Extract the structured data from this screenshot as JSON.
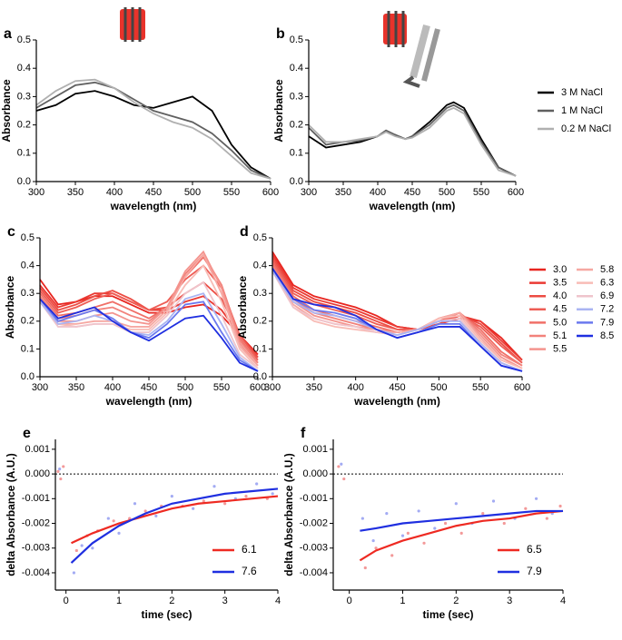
{
  "chart_data": [
    {
      "type": "line",
      "label": "a",
      "xlabel": "wavelength (nm)",
      "ylabel": "Absorbance",
      "x": [
        300,
        325,
        350,
        375,
        400,
        425,
        450,
        475,
        500,
        525,
        550,
        575,
        600
      ],
      "series": [
        {
          "color": "#000000",
          "values": [
            0.25,
            0.27,
            0.31,
            0.32,
            0.3,
            0.27,
            0.26,
            0.28,
            0.3,
            0.25,
            0.13,
            0.05,
            0.01
          ]
        },
        {
          "color": "#606060",
          "values": [
            0.26,
            0.3,
            0.34,
            0.35,
            0.33,
            0.29,
            0.25,
            0.23,
            0.21,
            0.17,
            0.11,
            0.04,
            0.01
          ]
        },
        {
          "color": "#b0b0b0",
          "values": [
            0.27,
            0.32,
            0.355,
            0.36,
            0.33,
            0.28,
            0.24,
            0.21,
            0.19,
            0.15,
            0.09,
            0.03,
            0.01
          ]
        }
      ],
      "xlim": [
        300,
        600
      ],
      "xticks": [
        300,
        350,
        400,
        450,
        500,
        550,
        600
      ],
      "ylim": [
        0,
        0.5
      ],
      "yticks": [
        {
          "value": 0,
          "label": "0.0"
        },
        0.1,
        0.2,
        0.3,
        0.4,
        0.5
      ]
    },
    {
      "type": "line",
      "label": "b",
      "xlabel": "wavelength (nm)",
      "ylabel": "Absorbance",
      "x": [
        300,
        325,
        350,
        375,
        400,
        412,
        425,
        440,
        450,
        475,
        500,
        510,
        525,
        550,
        575,
        600
      ],
      "series": [
        {
          "name": "3 M NaCl",
          "color": "#000000",
          "values": [
            0.16,
            0.12,
            0.13,
            0.14,
            0.16,
            0.18,
            0.165,
            0.15,
            0.16,
            0.21,
            0.27,
            0.28,
            0.26,
            0.15,
            0.05,
            0.02
          ]
        },
        {
          "name": "1 M NaCl",
          "color": "#606060",
          "values": [
            0.19,
            0.13,
            0.14,
            0.145,
            0.16,
            0.18,
            0.165,
            0.15,
            0.16,
            0.2,
            0.26,
            0.27,
            0.25,
            0.14,
            0.05,
            0.02
          ]
        },
        {
          "name": "0.2 M NaCl",
          "color": "#b0b0b0",
          "values": [
            0.2,
            0.14,
            0.14,
            0.15,
            0.16,
            0.175,
            0.16,
            0.15,
            0.155,
            0.19,
            0.25,
            0.26,
            0.24,
            0.13,
            0.04,
            0.02
          ]
        }
      ],
      "legend": "outside-right",
      "xlim": [
        300,
        600
      ],
      "xticks": [
        300,
        350,
        400,
        450,
        500,
        550,
        600
      ],
      "ylim": [
        0,
        0.5
      ],
      "yticks": [
        {
          "value": 0,
          "label": "0.0"
        },
        0.1,
        0.2,
        0.3,
        0.4,
        0.5
      ]
    },
    {
      "type": "line",
      "label": "c",
      "xlabel": "wavelength (nm)",
      "ylabel": "Absorbance",
      "x": [
        300,
        325,
        350,
        375,
        400,
        425,
        450,
        475,
        500,
        525,
        550,
        575,
        600
      ],
      "series": [
        {
          "color": "#e8251f",
          "values": [
            0.35,
            0.26,
            0.27,
            0.29,
            0.29,
            0.26,
            0.23,
            0.23,
            0.25,
            0.26,
            0.22,
            0.15,
            0.08
          ]
        },
        {
          "color": "#ea3a33",
          "values": [
            0.33,
            0.25,
            0.27,
            0.3,
            0.3,
            0.27,
            0.24,
            0.24,
            0.27,
            0.29,
            0.24,
            0.15,
            0.07
          ]
        },
        {
          "color": "#ec4c43",
          "values": [
            0.32,
            0.24,
            0.26,
            0.29,
            0.31,
            0.28,
            0.24,
            0.25,
            0.3,
            0.34,
            0.28,
            0.15,
            0.07
          ]
        },
        {
          "color": "#ee5d55",
          "values": [
            0.31,
            0.23,
            0.25,
            0.28,
            0.3,
            0.27,
            0.24,
            0.27,
            0.35,
            0.4,
            0.32,
            0.15,
            0.06
          ]
        },
        {
          "color": "#f07068",
          "values": [
            0.3,
            0.22,
            0.23,
            0.25,
            0.27,
            0.24,
            0.21,
            0.25,
            0.36,
            0.43,
            0.33,
            0.14,
            0.05
          ]
        },
        {
          "color": "#f2827b",
          "values": [
            0.29,
            0.21,
            0.22,
            0.24,
            0.25,
            0.22,
            0.2,
            0.25,
            0.37,
            0.44,
            0.33,
            0.13,
            0.05
          ]
        },
        {
          "color": "#f4948e",
          "values": [
            0.28,
            0.2,
            0.2,
            0.22,
            0.23,
            0.2,
            0.19,
            0.25,
            0.38,
            0.45,
            0.32,
            0.12,
            0.04
          ]
        },
        {
          "color": "#f6a8a2",
          "values": [
            0.27,
            0.19,
            0.19,
            0.2,
            0.2,
            0.18,
            0.18,
            0.24,
            0.36,
            0.44,
            0.3,
            0.11,
            0.04
          ]
        },
        {
          "color": "#f8bcb6",
          "values": [
            0.27,
            0.19,
            0.18,
            0.19,
            0.19,
            0.17,
            0.17,
            0.23,
            0.33,
            0.4,
            0.27,
            0.1,
            0.03
          ]
        },
        {
          "color": "#efc4cc",
          "values": [
            0.27,
            0.18,
            0.18,
            0.19,
            0.19,
            0.16,
            0.16,
            0.22,
            0.3,
            0.34,
            0.22,
            0.08,
            0.03
          ]
        },
        {
          "color": "#aab4f2",
          "values": [
            0.27,
            0.19,
            0.2,
            0.22,
            0.2,
            0.16,
            0.15,
            0.2,
            0.28,
            0.3,
            0.19,
            0.07,
            0.02
          ]
        },
        {
          "color": "#6a78ee",
          "values": [
            0.28,
            0.2,
            0.22,
            0.24,
            0.21,
            0.16,
            0.14,
            0.19,
            0.26,
            0.27,
            0.16,
            0.06,
            0.02
          ]
        },
        {
          "color": "#1f2fe0",
          "values": [
            0.28,
            0.21,
            0.23,
            0.25,
            0.2,
            0.16,
            0.13,
            0.17,
            0.21,
            0.22,
            0.14,
            0.05,
            0.02
          ]
        }
      ],
      "xlim": [
        300,
        600
      ],
      "xticks": [
        300,
        350,
        400,
        450,
        500,
        550,
        600
      ],
      "ylim": [
        0,
        0.5
      ],
      "yticks": [
        {
          "value": 0,
          "label": "0.0"
        },
        0.1,
        0.2,
        0.3,
        0.4,
        0.5
      ]
    },
    {
      "type": "line",
      "label": "d",
      "xlabel": "wavelength (nm)",
      "ylabel": "Absorbance",
      "x": [
        300,
        325,
        350,
        375,
        400,
        425,
        450,
        475,
        500,
        525,
        550,
        575,
        600
      ],
      "series": [
        {
          "name": "3.0",
          "color": "#e8251f",
          "values": [
            0.45,
            0.33,
            0.29,
            0.27,
            0.25,
            0.22,
            0.18,
            0.17,
            0.19,
            0.21,
            0.2,
            0.14,
            0.06
          ]
        },
        {
          "name": "3.5",
          "color": "#ea3a33",
          "values": [
            0.44,
            0.32,
            0.28,
            0.26,
            0.24,
            0.21,
            0.18,
            0.17,
            0.19,
            0.22,
            0.2,
            0.13,
            0.06
          ]
        },
        {
          "name": "4.0",
          "color": "#ec4c43",
          "values": [
            0.43,
            0.31,
            0.27,
            0.25,
            0.23,
            0.2,
            0.17,
            0.17,
            0.19,
            0.22,
            0.19,
            0.12,
            0.05
          ]
        },
        {
          "name": "4.5",
          "color": "#ee5d55",
          "values": [
            0.42,
            0.3,
            0.26,
            0.24,
            0.22,
            0.19,
            0.17,
            0.17,
            0.2,
            0.22,
            0.18,
            0.11,
            0.05
          ]
        },
        {
          "name": "5.0",
          "color": "#f07068",
          "values": [
            0.41,
            0.29,
            0.24,
            0.22,
            0.2,
            0.18,
            0.16,
            0.17,
            0.2,
            0.23,
            0.17,
            0.09,
            0.04
          ]
        },
        {
          "name": "5.1",
          "color": "#f2827b",
          "values": [
            0.4,
            0.28,
            0.23,
            0.21,
            0.19,
            0.17,
            0.16,
            0.17,
            0.21,
            0.23,
            0.16,
            0.08,
            0.04
          ]
        },
        {
          "name": "5.5",
          "color": "#f4948e",
          "values": [
            0.39,
            0.27,
            0.22,
            0.2,
            0.18,
            0.17,
            0.16,
            0.17,
            0.21,
            0.23,
            0.15,
            0.07,
            0.03
          ]
        },
        {
          "name": "5.8",
          "color": "#f6a8a2",
          "values": [
            0.38,
            0.26,
            0.21,
            0.19,
            0.18,
            0.16,
            0.16,
            0.17,
            0.21,
            0.23,
            0.14,
            0.06,
            0.03
          ]
        },
        {
          "name": "6.3",
          "color": "#f8bcb6",
          "values": [
            0.38,
            0.25,
            0.2,
            0.18,
            0.17,
            0.16,
            0.15,
            0.17,
            0.21,
            0.22,
            0.13,
            0.06,
            0.03
          ]
        },
        {
          "name": "6.9",
          "color": "#efc4cc",
          "values": [
            0.38,
            0.25,
            0.21,
            0.19,
            0.18,
            0.16,
            0.15,
            0.17,
            0.2,
            0.21,
            0.12,
            0.05,
            0.02
          ]
        },
        {
          "name": "7.2",
          "color": "#aab4f2",
          "values": [
            0.38,
            0.27,
            0.23,
            0.22,
            0.2,
            0.17,
            0.15,
            0.17,
            0.2,
            0.2,
            0.12,
            0.05,
            0.02
          ]
        },
        {
          "name": "7.9",
          "color": "#6a78ee",
          "values": [
            0.39,
            0.28,
            0.24,
            0.23,
            0.21,
            0.17,
            0.14,
            0.16,
            0.19,
            0.19,
            0.11,
            0.04,
            0.02
          ]
        },
        {
          "name": "8.5",
          "color": "#1f2fe0",
          "values": [
            0.39,
            0.28,
            0.26,
            0.25,
            0.22,
            0.17,
            0.14,
            0.16,
            0.18,
            0.18,
            0.11,
            0.04,
            0.02
          ]
        }
      ],
      "legend": "outside-right-two-columns",
      "xlim": [
        300,
        600
      ],
      "xticks": [
        300,
        350,
        400,
        450,
        500,
        550,
        600
      ],
      "ylim": [
        0,
        0.5
      ],
      "yticks": [
        {
          "value": 0,
          "label": "0.0"
        },
        0.1,
        0.2,
        0.3,
        0.4,
        0.5
      ]
    },
    {
      "type": "line",
      "label": "e",
      "xlabel": "time (sec)",
      "ylabel": "delta Absorbance (A.U.)",
      "hline": 0,
      "points": [
        {
          "color": "#f08080",
          "x": [
            -0.15,
            -0.1,
            -0.05,
            0.2,
            0.4,
            0.6,
            0.9,
            1.2,
            1.5,
            1.8,
            2.2,
            2.6,
            3.0,
            3.4,
            3.8
          ],
          "values": [
            0.0001,
            -0.0002,
            0.0003,
            -0.0031,
            -0.0025,
            -0.0023,
            -0.0019,
            -0.0018,
            -0.0015,
            -0.0013,
            -0.0013,
            -0.0011,
            -0.0012,
            -0.0009,
            -0.001
          ]
        },
        {
          "color": "#8c96f0",
          "x": [
            -0.12,
            0.15,
            0.3,
            0.5,
            0.8,
            1.0,
            1.3,
            1.7,
            2.0,
            2.4,
            2.8,
            3.2,
            3.6,
            3.9
          ],
          "values": [
            0.0002,
            -0.004,
            -0.0029,
            -0.003,
            -0.0018,
            -0.0024,
            -0.0012,
            -0.0017,
            -0.0009,
            -0.0014,
            -0.0005,
            -0.001,
            -0.0004,
            -0.0008
          ]
        }
      ],
      "series": [
        {
          "name": "6.1",
          "color": "#ee2a22",
          "x": [
            0.1,
            0.5,
            1,
            1.5,
            2,
            2.5,
            3,
            3.5,
            4
          ],
          "values": [
            -0.0028,
            -0.0024,
            -0.002,
            -0.0017,
            -0.0014,
            -0.0012,
            -0.0011,
            -0.001,
            -0.0009
          ]
        },
        {
          "name": "7.6",
          "color": "#1f2fe0",
          "x": [
            0.1,
            0.5,
            1,
            1.5,
            2,
            2.5,
            3,
            3.5,
            4
          ],
          "values": [
            -0.0036,
            -0.0028,
            -0.0021,
            -0.0016,
            -0.0012,
            -0.001,
            -0.0008,
            -0.0007,
            -0.0006
          ]
        }
      ],
      "legend": "lower right",
      "xlim": [
        -0.2,
        4
      ],
      "xticks": [
        0,
        1,
        2,
        3,
        4
      ],
      "ylim": [
        -0.0047,
        0.0014
      ],
      "yticks": [
        0.001,
        {
          "value": 0,
          "label": "0.000"
        },
        -0.001,
        -0.002,
        -0.003,
        -0.004
      ]
    },
    {
      "type": "line",
      "label": "f",
      "xlabel": "time (sec)",
      "ylabel": "delta Absorbance (A.U.)",
      "hline": 0,
      "points": [
        {
          "color": "#f08080",
          "x": [
            -0.2,
            -0.1,
            0.3,
            0.5,
            0.8,
            1.1,
            1.4,
            1.8,
            2.1,
            2.5,
            2.9,
            3.3,
            3.7,
            3.95
          ],
          "values": [
            0.0003,
            -0.0002,
            -0.0038,
            -0.003,
            -0.0033,
            -0.0024,
            -0.0028,
            -0.002,
            -0.0024,
            -0.0016,
            -0.002,
            -0.0014,
            -0.0018,
            -0.0013
          ]
        },
        {
          "color": "#8c96f0",
          "x": [
            -0.15,
            0.25,
            0.45,
            0.7,
            1.0,
            1.3,
            1.6,
            2.0,
            2.3,
            2.7,
            3.1,
            3.5,
            3.8
          ],
          "values": [
            0.0004,
            -0.0018,
            -0.0027,
            -0.0016,
            -0.0025,
            -0.0015,
            -0.0022,
            -0.0012,
            -0.002,
            -0.0011,
            -0.0018,
            -0.001,
            -0.0016
          ]
        }
      ],
      "series": [
        {
          "name": "6.5",
          "color": "#ee2a22",
          "x": [
            0.2,
            0.5,
            1,
            1.5,
            2,
            2.5,
            3,
            3.5,
            4
          ],
          "values": [
            -0.0035,
            -0.0031,
            -0.0027,
            -0.0024,
            -0.0021,
            -0.0019,
            -0.0018,
            -0.0016,
            -0.0015
          ]
        },
        {
          "name": "7.9",
          "color": "#1f2fe0",
          "x": [
            0.2,
            0.5,
            1,
            1.5,
            2,
            2.5,
            3,
            3.5,
            4
          ],
          "values": [
            -0.0023,
            -0.0022,
            -0.002,
            -0.0019,
            -0.0018,
            -0.0017,
            -0.0016,
            -0.0015,
            -0.0015
          ]
        }
      ],
      "legend": "lower right",
      "xlim": [
        -0.3,
        4
      ],
      "xticks": [
        0,
        1,
        2,
        3,
        4
      ],
      "ylim": [
        -0.0047,
        0.0014
      ],
      "yticks": [
        0.001,
        {
          "value": 0,
          "label": "0.000"
        },
        -0.001,
        -0.002,
        -0.003,
        -0.004
      ]
    }
  ]
}
